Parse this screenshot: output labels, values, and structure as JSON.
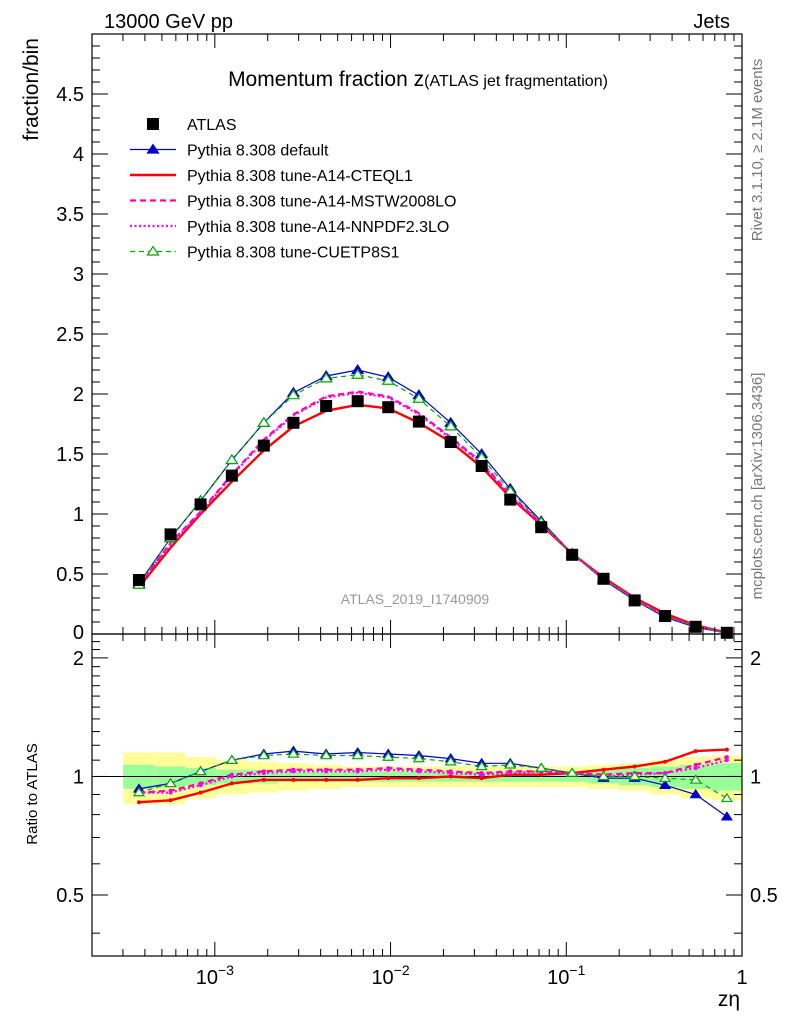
{
  "header": {
    "left": "13000 GeV pp",
    "right": "Jets"
  },
  "side_text": {
    "rivet": "Rivet 3.1.10, ≥ 2.1M events",
    "mcplots": "mcplots.cern.ch [arXiv:1306.3436]"
  },
  "watermark": "ATLAS_2019_I1740909",
  "chart_data": {
    "type": "line",
    "title": "Momentum fraction z",
    "subtitle": "(ATLAS jet fragmentation)",
    "ylabel": "fraction/bin",
    "xlabel": "zη",
    "x_scale": "log",
    "xlim": [
      0.0002,
      1.0
    ],
    "ylim": [
      0,
      5.0
    ],
    "yticks": [
      0.5,
      1,
      1.5,
      2,
      2.5,
      3,
      3.5,
      4,
      4.5
    ],
    "ytick_labels": [
      "0.5",
      "1",
      "1.5",
      "2",
      "2.5",
      "3",
      "3.5",
      "4",
      "4.5"
    ],
    "ybottom_label": "0",
    "xticks": [
      0.001,
      0.01,
      0.1,
      1
    ],
    "xtick_labels": [
      {
        "base": "10",
        "exp": "−3"
      },
      {
        "base": "10",
        "exp": "−2"
      },
      {
        "base": "10",
        "exp": "−1"
      },
      {
        "base": "1",
        "exp": ""
      }
    ],
    "legend_position": "top-left",
    "x": [
      0.00037,
      0.00056,
      0.00083,
      0.00125,
      0.0019,
      0.0028,
      0.0043,
      0.0065,
      0.0097,
      0.0145,
      0.022,
      0.033,
      0.048,
      0.072,
      0.108,
      0.163,
      0.245,
      0.365,
      0.545,
      0.82
    ],
    "series": [
      {
        "name": "ATLAS",
        "color": "#000000",
        "style": "data",
        "values": [
          0.45,
          0.83,
          1.08,
          1.32,
          1.57,
          1.76,
          1.9,
          1.94,
          1.89,
          1.77,
          1.6,
          1.4,
          1.12,
          0.89,
          0.66,
          0.46,
          0.28,
          0.15,
          0.06,
          0.01
        ]
      },
      {
        "name": "Pythia 8.308 default",
        "color": "#0000cc",
        "style": "solid-thin",
        "marker": "triangle-filled",
        "values": [
          0.42,
          0.8,
          1.11,
          1.45,
          1.76,
          2.01,
          2.15,
          2.2,
          2.14,
          1.99,
          1.76,
          1.5,
          1.21,
          0.94,
          0.67,
          0.45,
          0.28,
          0.14,
          0.055,
          0.008
        ]
      },
      {
        "name": "Pythia 8.308 tune-A14-CTEQL1",
        "color": "#ff0000",
        "style": "solid-thick",
        "values": [
          0.39,
          0.72,
          1.0,
          1.27,
          1.53,
          1.73,
          1.86,
          1.91,
          1.88,
          1.76,
          1.6,
          1.39,
          1.14,
          0.91,
          0.67,
          0.47,
          0.3,
          0.17,
          0.072,
          0.012
        ]
      },
      {
        "name": "Pythia 8.308 tune-A14-MSTW2008LO",
        "color": "#ff00aa",
        "style": "dashed",
        "values": [
          0.41,
          0.76,
          1.02,
          1.33,
          1.62,
          1.83,
          1.98,
          2.02,
          1.98,
          1.84,
          1.64,
          1.43,
          1.16,
          0.92,
          0.67,
          0.46,
          0.29,
          0.15,
          0.065,
          0.011
        ]
      },
      {
        "name": "Pythia 8.308 tune-A14-NNPDF2.3LO",
        "color": "#ff00ff",
        "style": "dotted",
        "values": [
          0.41,
          0.75,
          1.01,
          1.32,
          1.61,
          1.82,
          1.97,
          2.01,
          1.97,
          1.83,
          1.63,
          1.42,
          1.15,
          0.92,
          0.67,
          0.46,
          0.29,
          0.15,
          0.064,
          0.011
        ]
      },
      {
        "name": "Pythia 8.308 tune-CUETP8S1",
        "color": "#00aa00",
        "style": "dashed-thin",
        "marker": "triangle-open",
        "values": [
          0.41,
          0.8,
          1.11,
          1.45,
          1.76,
          1.99,
          2.13,
          2.16,
          2.11,
          1.96,
          1.73,
          1.47,
          1.19,
          0.93,
          0.67,
          0.46,
          0.28,
          0.15,
          0.06,
          0.009
        ]
      }
    ],
    "ratio": {
      "ylabel": "Ratio to ATLAS",
      "ylim": [
        0.35,
        2.3
      ],
      "yticks": [
        0.5,
        1,
        2
      ],
      "ytick_labels": [
        "0.5",
        "1",
        "2"
      ],
      "band_outer": [
        0.15,
        0.15,
        0.12,
        0.1,
        0.09,
        0.08,
        0.07,
        0.06,
        0.06,
        0.06,
        0.06,
        0.06,
        0.06,
        0.06,
        0.06,
        0.07,
        0.08,
        0.1,
        0.12,
        0.13
      ],
      "band_inner": [
        0.07,
        0.06,
        0.05,
        0.04,
        0.04,
        0.03,
        0.03,
        0.03,
        0.03,
        0.03,
        0.03,
        0.03,
        0.03,
        0.03,
        0.03,
        0.04,
        0.05,
        0.06,
        0.07,
        0.08
      ],
      "series": [
        {
          "name": "Pythia 8.308 default",
          "values": [
            0.93,
            0.96,
            1.03,
            1.1,
            1.14,
            1.16,
            1.14,
            1.15,
            1.14,
            1.13,
            1.11,
            1.08,
            1.08,
            1.05,
            1.02,
            0.99,
            0.99,
            0.95,
            0.9,
            0.79
          ]
        },
        {
          "name": "Pythia 8.308 tune-A14-CTEQL1",
          "values": [
            0.86,
            0.87,
            0.91,
            0.96,
            0.98,
            0.98,
            0.98,
            0.98,
            0.99,
            0.99,
            1.0,
            0.99,
            1.01,
            1.01,
            1.02,
            1.04,
            1.06,
            1.09,
            1.16,
            1.17
          ]
        },
        {
          "name": "Pythia 8.308 tune-A14-MSTW2008LO",
          "values": [
            0.91,
            0.92,
            0.96,
            1.01,
            1.03,
            1.04,
            1.04,
            1.04,
            1.05,
            1.04,
            1.03,
            1.02,
            1.03,
            1.03,
            1.02,
            1.01,
            1.02,
            1.02,
            1.07,
            1.12
          ]
        },
        {
          "name": "Pythia 8.308 tune-A14-NNPDF2.3LO",
          "values": [
            0.91,
            0.91,
            0.95,
            1.0,
            1.02,
            1.03,
            1.03,
            1.03,
            1.04,
            1.03,
            1.02,
            1.01,
            1.02,
            1.03,
            1.02,
            1.0,
            1.01,
            1.02,
            1.05,
            1.1
          ]
        },
        {
          "name": "Pythia 8.308 tune-CUETP8S1",
          "values": [
            0.91,
            0.96,
            1.03,
            1.1,
            1.13,
            1.14,
            1.13,
            1.13,
            1.12,
            1.11,
            1.09,
            1.06,
            1.07,
            1.05,
            1.02,
            1.0,
            1.0,
            0.99,
            0.98,
            0.88
          ]
        }
      ]
    }
  }
}
